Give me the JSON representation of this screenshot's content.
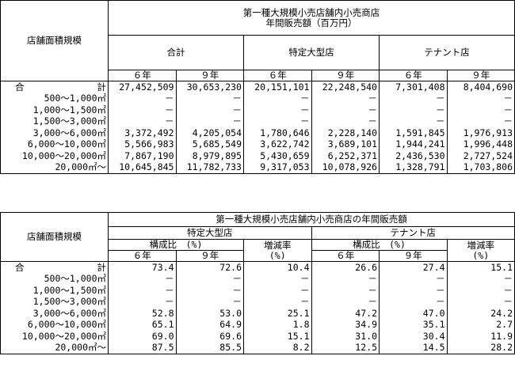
{
  "table1": {
    "title": [
      "第一種大規模小売店舗内小売商店",
      "年間販売額（百万円）"
    ],
    "row_header": "店舗面積規模",
    "groups": [
      "合計",
      "特定大型店",
      "テナント店"
    ],
    "years": [
      "６年",
      "９年",
      "６年",
      "９年",
      "６年",
      "９年"
    ],
    "rows": [
      [
        "合　　　　　　　　計",
        "27,452,509",
        "30,653,230",
        "20,151,101",
        "22,248,540",
        "7,301,408",
        "8,404,690"
      ],
      [
        "500～1,000㎡",
        "－",
        "－",
        "－",
        "－",
        "－",
        "－"
      ],
      [
        "1,000～1,500㎡",
        "－",
        "－",
        "－",
        "－",
        "－",
        "－"
      ],
      [
        "1,500～3,000㎡",
        "－",
        "－",
        "－",
        "－",
        "－",
        "－"
      ],
      [
        "3,000～6,000㎡",
        "3,372,492",
        "4,205,054",
        "1,780,646",
        "2,228,140",
        "1,591,845",
        "1,976,913"
      ],
      [
        "6,000～10,000㎡",
        "5,566,983",
        "5,685,549",
        "3,622,742",
        "3,689,101",
        "1,944,241",
        "1,996,448"
      ],
      [
        "10,000～20,000㎡",
        "7,867,190",
        "8,979,895",
        "5,430,659",
        "6,252,371",
        "2,436,530",
        "2,727,524"
      ],
      [
        "20,000㎡～",
        "10,645,845",
        "11,782,733",
        "9,317,053",
        "10,078,926",
        "1,328,791",
        "1,703,806"
      ]
    ]
  },
  "table2": {
    "title": "第一種大規模小売店舗内小売商店の年間販売額",
    "row_header": "店舗面積規模",
    "groups": [
      "特定大型店",
      "テナント店"
    ],
    "share": "構成比　(%)",
    "change": [
      "増減率",
      "(%)"
    ],
    "years": [
      "６年",
      "９年",
      "６年",
      "９年"
    ],
    "rows": [
      [
        "合　　　　　　　　計",
        "73.4",
        "72.6",
        "10.4",
        "26.6",
        "27.4",
        "15.1"
      ],
      [
        "500～1,000㎡",
        "－",
        "－",
        "－",
        "－",
        "－",
        "－"
      ],
      [
        "1,000～1,500㎡",
        "－",
        "－",
        "－",
        "－",
        "－",
        "－"
      ],
      [
        "1,500～3,000㎡",
        "－",
        "－",
        "－",
        "－",
        "－",
        "－"
      ],
      [
        "3,000～6,000㎡",
        "52.8",
        "53.0",
        "25.1",
        "47.2",
        "47.0",
        "24.2"
      ],
      [
        "6,000～10,000㎡",
        "65.1",
        "64.9",
        "1.8",
        "34.9",
        "35.1",
        "2.7"
      ],
      [
        "10,000～20,000㎡",
        "69.0",
        "69.6",
        "15.1",
        "31.0",
        "30.4",
        "11.9"
      ],
      [
        "20,000㎡～",
        "87.5",
        "85.5",
        "8.2",
        "12.5",
        "14.5",
        "28.2"
      ]
    ]
  }
}
